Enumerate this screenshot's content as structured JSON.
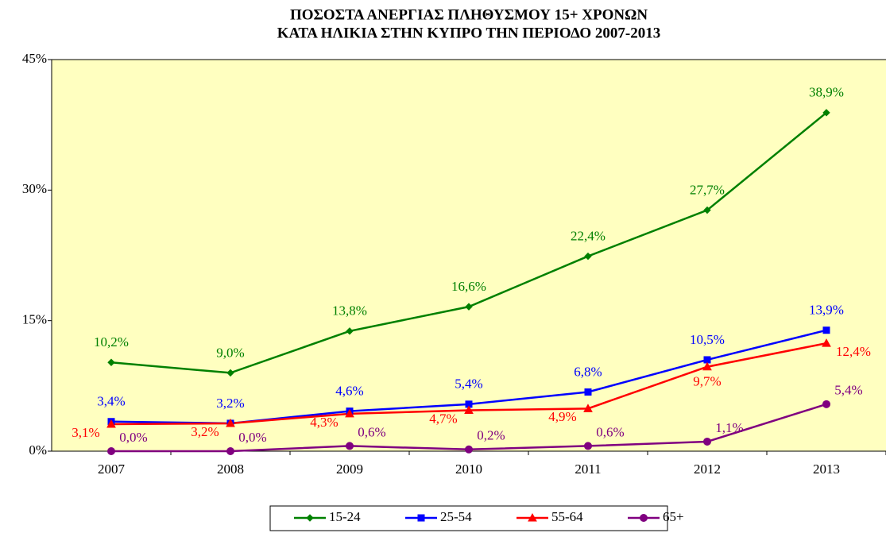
{
  "chart_data": {
    "type": "line",
    "title": [
      "ΠΟΣΟΣΤΑ ΑΝΕΡΓΙΑΣ ΠΛΗΘΥΣΜΟΥ 15+ ΧΡΟΝΩΝ",
      "ΚΑΤΑ ΗΛΙΚΙΑ ΣΤΗΝ ΚΥΠΡΟ ΤΗΝ ΠΕΡΙΟΔΟ 2007-2013"
    ],
    "categories": [
      "2007",
      "2008",
      "2009",
      "2010",
      "2011",
      "2012",
      "2013"
    ],
    "series": [
      {
        "name": "15-24",
        "color": "#008000",
        "marker": "diamond",
        "values": [
          10.2,
          9.0,
          13.8,
          16.6,
          22.4,
          27.7,
          38.9
        ],
        "value_labels": [
          "10,2%",
          "9,0%",
          "13,8%",
          "16,6%",
          "22,4%",
          "27,7%",
          "38,9%"
        ]
      },
      {
        "name": "25-54",
        "color": "#0000ff",
        "marker": "square",
        "values": [
          3.4,
          3.2,
          4.6,
          5.4,
          6.8,
          10.5,
          13.9
        ],
        "value_labels": [
          "3,4%",
          "3,2%",
          "4,6%",
          "5,4%",
          "6,8%",
          "10,5%",
          "13,9%"
        ]
      },
      {
        "name": "55-64",
        "color": "#ff0000",
        "marker": "triangle",
        "values": [
          3.1,
          3.2,
          4.3,
          4.7,
          4.9,
          9.7,
          12.4
        ],
        "value_labels": [
          "3,1%",
          "3,2%",
          "4,3%",
          "4,7%",
          "4,9%",
          "9,7%",
          "12,4%"
        ]
      },
      {
        "name": "65+",
        "color": "#800080",
        "marker": "circle",
        "values": [
          0.0,
          0.0,
          0.6,
          0.2,
          0.6,
          1.1,
          5.4
        ],
        "value_labels": [
          "0,0%",
          "0,0%",
          "0,6%",
          "0,2%",
          "0,6%",
          "1,1%",
          "5,4%"
        ]
      }
    ],
    "ylim": [
      0,
      45
    ],
    "yticks": [
      {
        "value": 0,
        "label": "0%"
      },
      {
        "value": 15,
        "label": "15%"
      },
      {
        "value": 30,
        "label": "30%"
      },
      {
        "value": 45,
        "label": "45%"
      }
    ],
    "legend": "bottom"
  }
}
